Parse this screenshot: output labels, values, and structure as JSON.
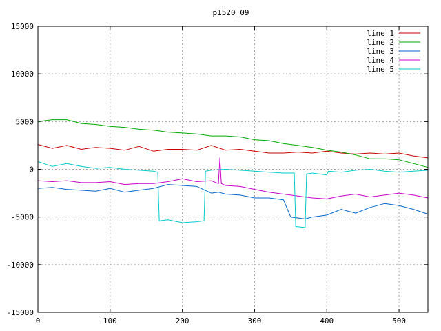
{
  "chart_data": {
    "type": "line",
    "title": "p1520_09",
    "xlabel": "",
    "ylabel": "",
    "xlim": [
      0,
      540
    ],
    "ylim": [
      -15000,
      15000
    ],
    "x_ticks": [
      0,
      100,
      200,
      300,
      400,
      500
    ],
    "y_ticks": [
      -15000,
      -10000,
      -5000,
      0,
      5000,
      10000,
      15000
    ],
    "x_tick_labels": [
      "0",
      "100",
      "200",
      "300",
      "400",
      "500"
    ],
    "y_tick_labels": [
      "-15000",
      "-10000",
      "-5000",
      "0",
      "5000",
      "10000",
      "15000"
    ],
    "grid": true,
    "legend_position": "top-right",
    "series": [
      {
        "name": "line 1",
        "color": "#cc0000",
        "x": [
          0,
          20,
          40,
          60,
          80,
          100,
          120,
          140,
          160,
          180,
          200,
          220,
          240,
          260,
          280,
          300,
          320,
          340,
          360,
          380,
          400,
          420,
          440,
          460,
          480,
          500,
          520,
          540
        ],
        "y": [
          2600,
          2200,
          2500,
          2100,
          2300,
          2200,
          2000,
          2400,
          1900,
          2100,
          2100,
          2000,
          2500,
          2000,
          2100,
          1900,
          1700,
          1700,
          1800,
          1700,
          1900,
          1700,
          1600,
          1700,
          1600,
          1700,
          1400,
          1200
        ]
      },
      {
        "name": "line 2",
        "color": "#00aa00",
        "x": [
          0,
          20,
          40,
          60,
          80,
          100,
          120,
          140,
          160,
          180,
          200,
          220,
          240,
          260,
          280,
          300,
          320,
          340,
          360,
          380,
          400,
          420,
          440,
          460,
          480,
          500,
          520,
          540
        ],
        "y": [
          5000,
          5200,
          5200,
          4800,
          4700,
          4500,
          4400,
          4200,
          4100,
          3900,
          3800,
          3700,
          3500,
          3500,
          3400,
          3100,
          3000,
          2700,
          2500,
          2300,
          2000,
          1800,
          1500,
          1100,
          1100,
          1000,
          600,
          200
        ]
      },
      {
        "name": "line 3",
        "color": "#0066cc",
        "x": [
          0,
          20,
          40,
          60,
          80,
          100,
          120,
          140,
          160,
          180,
          200,
          220,
          240,
          250,
          260,
          280,
          300,
          320,
          340,
          350,
          370,
          380,
          400,
          420,
          440,
          460,
          480,
          500,
          520,
          540
        ],
        "y": [
          -2000,
          -1900,
          -2100,
          -2200,
          -2300,
          -2000,
          -2400,
          -2200,
          -2000,
          -1600,
          -1700,
          -1800,
          -2500,
          -2400,
          -2600,
          -2700,
          -3000,
          -3000,
          -3200,
          -5000,
          -5200,
          -5000,
          -4800,
          -4200,
          -4600,
          -4000,
          -3600,
          -3800,
          -4200,
          -4700
        ]
      },
      {
        "name": "line 4",
        "color": "#cc00cc",
        "x": [
          0,
          20,
          40,
          60,
          80,
          100,
          120,
          140,
          160,
          180,
          200,
          220,
          240,
          250,
          252,
          254,
          260,
          280,
          300,
          320,
          340,
          360,
          380,
          400,
          420,
          440,
          460,
          480,
          500,
          520,
          540
        ],
        "y": [
          -1200,
          -1300,
          -1200,
          -1400,
          -1400,
          -1300,
          -1600,
          -1500,
          -1500,
          -1300,
          -1000,
          -1300,
          -1200,
          -1500,
          1200,
          -1500,
          -1700,
          -1800,
          -2100,
          -2400,
          -2600,
          -2800,
          -3000,
          -3100,
          -2800,
          -2600,
          -2900,
          -2700,
          -2500,
          -2700,
          -3000
        ]
      },
      {
        "name": "line 5",
        "color": "#00cccc",
        "x": [
          0,
          20,
          40,
          60,
          80,
          100,
          120,
          140,
          160,
          166,
          168,
          180,
          200,
          220,
          230,
          232,
          240,
          260,
          280,
          300,
          320,
          340,
          355,
          357,
          370,
          372,
          380,
          400,
          402,
          420,
          440,
          460,
          480,
          500,
          520,
          540
        ],
        "y": [
          800,
          300,
          600,
          300,
          100,
          200,
          0,
          -100,
          -200,
          -300,
          -5400,
          -5300,
          -5600,
          -5500,
          -5400,
          -200,
          -100,
          0,
          -100,
          -200,
          -300,
          -400,
          -400,
          -6000,
          -6100,
          -500,
          -400,
          -600,
          -200,
          -300,
          -100,
          0,
          -200,
          -300,
          -200,
          -100
        ]
      }
    ]
  }
}
